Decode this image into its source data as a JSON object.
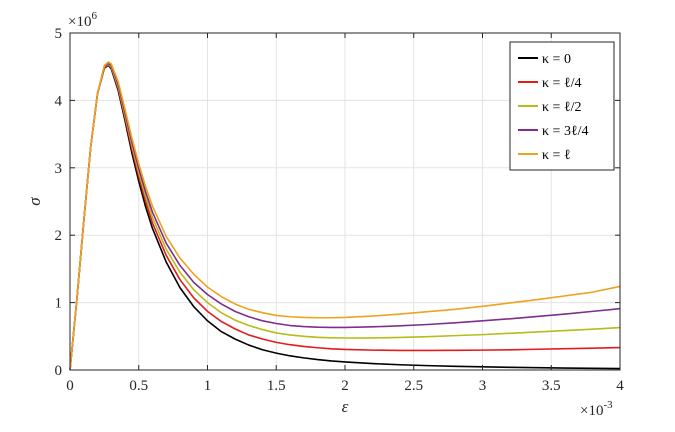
{
  "chart_data": {
    "type": "line",
    "title": "",
    "xlabel": "ε",
    "ylabel": "σ",
    "x_multiplier_label": "×10",
    "x_multiplier_exp": "-3",
    "y_multiplier_label": "×10",
    "y_multiplier_exp": "6",
    "xlim": [
      0,
      4
    ],
    "ylim": [
      0,
      5
    ],
    "xticks": [
      0,
      0.5,
      1,
      1.5,
      2,
      2.5,
      3,
      3.5,
      4
    ],
    "xtick_labels": [
      "0",
      "0.5",
      "1",
      "1.5",
      "2",
      "2.5",
      "3",
      "3.5",
      "4"
    ],
    "yticks": [
      0,
      1,
      2,
      3,
      4,
      5
    ],
    "ytick_labels": [
      "0",
      "1",
      "2",
      "3",
      "4",
      "5"
    ],
    "grid": true,
    "legend_position": "top-right",
    "x": [
      0,
      0.05,
      0.1,
      0.15,
      0.2,
      0.25,
      0.28,
      0.3,
      0.35,
      0.4,
      0.45,
      0.5,
      0.55,
      0.6,
      0.7,
      0.8,
      0.9,
      1.0,
      1.1,
      1.2,
      1.3,
      1.4,
      1.5,
      1.6,
      1.7,
      1.8,
      1.9,
      2.0,
      2.2,
      2.4,
      2.6,
      2.8,
      3.0,
      3.2,
      3.4,
      3.6,
      3.8,
      4.0
    ],
    "series": [
      {
        "name": "κ = 0",
        "color": "#000000",
        "values": [
          0,
          1.05,
          2.2,
          3.3,
          4.1,
          4.48,
          4.52,
          4.47,
          4.15,
          3.7,
          3.22,
          2.8,
          2.42,
          2.1,
          1.6,
          1.22,
          0.94,
          0.73,
          0.57,
          0.46,
          0.37,
          0.3,
          0.25,
          0.21,
          0.18,
          0.155,
          0.135,
          0.12,
          0.095,
          0.078,
          0.065,
          0.055,
          0.047,
          0.04,
          0.034,
          0.029,
          0.025,
          0.022
        ]
      },
      {
        "name": "κ = ℓ/4",
        "color": "#e41a1c",
        "values": [
          0,
          1.05,
          2.2,
          3.3,
          4.1,
          4.49,
          4.53,
          4.49,
          4.18,
          3.74,
          3.28,
          2.87,
          2.5,
          2.18,
          1.7,
          1.34,
          1.07,
          0.87,
          0.72,
          0.61,
          0.52,
          0.46,
          0.41,
          0.375,
          0.35,
          0.33,
          0.315,
          0.305,
          0.295,
          0.29,
          0.29,
          0.292,
          0.295,
          0.3,
          0.308,
          0.316,
          0.324,
          0.333
        ]
      },
      {
        "name": "κ = ℓ/2",
        "color": "#b5bd17",
        "values": [
          0,
          1.05,
          2.2,
          3.3,
          4.1,
          4.5,
          4.54,
          4.5,
          4.21,
          3.78,
          3.33,
          2.93,
          2.57,
          2.26,
          1.79,
          1.45,
          1.19,
          1.0,
          0.85,
          0.74,
          0.66,
          0.6,
          0.55,
          0.52,
          0.5,
          0.485,
          0.478,
          0.475,
          0.476,
          0.483,
          0.495,
          0.51,
          0.525,
          0.545,
          0.565,
          0.585,
          0.605,
          0.63
        ]
      },
      {
        "name": "κ = 3ℓ/4",
        "color": "#7e2f8e",
        "values": [
          0,
          1.05,
          2.2,
          3.3,
          4.1,
          4.51,
          4.55,
          4.52,
          4.24,
          3.82,
          3.38,
          2.99,
          2.64,
          2.34,
          1.88,
          1.55,
          1.3,
          1.12,
          0.98,
          0.87,
          0.79,
          0.73,
          0.69,
          0.66,
          0.645,
          0.635,
          0.632,
          0.632,
          0.64,
          0.655,
          0.675,
          0.7,
          0.73,
          0.76,
          0.795,
          0.83,
          0.87,
          0.91
        ]
      },
      {
        "name": "κ = ℓ",
        "color": "#eda31f",
        "values": [
          0,
          1.05,
          2.2,
          3.3,
          4.1,
          4.52,
          4.57,
          4.54,
          4.28,
          3.87,
          3.44,
          3.06,
          2.72,
          2.43,
          1.98,
          1.66,
          1.42,
          1.23,
          1.09,
          0.98,
          0.9,
          0.85,
          0.81,
          0.79,
          0.78,
          0.775,
          0.775,
          0.78,
          0.8,
          0.83,
          0.865,
          0.9,
          0.945,
          0.995,
          1.045,
          1.1,
          1.155,
          1.24
        ]
      }
    ]
  }
}
